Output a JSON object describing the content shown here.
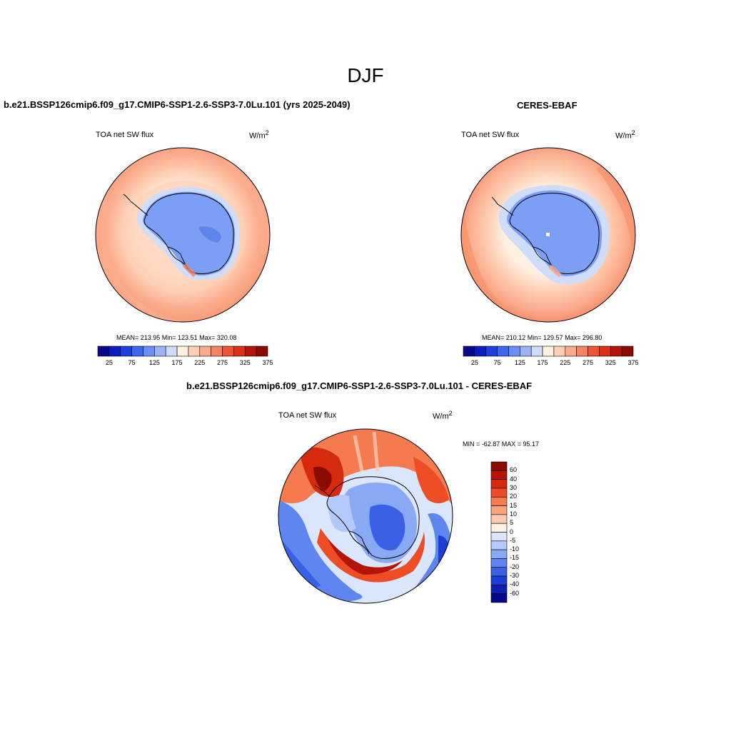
{
  "figure": {
    "title": "DJF"
  },
  "panels": [
    {
      "title": "b.e21.BSSP126cmip6.f09_g17.CMIP6-SSP1-2.6-SSP3-7.0Lu.101 (yrs 2025-2049)",
      "left_label": "TOA net SW flux",
      "units": "W/m",
      "units_sup": "2",
      "stats": "MEAN= 213.95  Min= 123.51  Max= 320.08"
    },
    {
      "title": "CERES-EBAF",
      "left_label": "TOA net SW flux",
      "units": "W/m",
      "units_sup": "2",
      "stats": "MEAN= 210.12  Min= 129.57  Max= 296.80"
    },
    {
      "title": "b.e21.BSSP126cmip6.f09_g17.CMIP6-SSP1-2.6-SSP3-7.0Lu.101 - CERES-EBAF",
      "left_label": "TOA net SW flux",
      "units": "W/m",
      "units_sup": "2",
      "stats": "MIN = -62.87 MAX =  95.17"
    }
  ],
  "colorbars": {
    "absolute": {
      "colors": [
        "#08088a",
        "#0c1cbf",
        "#1d3fe0",
        "#3f66f0",
        "#6b8df5",
        "#9db4f8",
        "#cfddfb",
        "#fff0e4",
        "#fdd0b5",
        "#fbab8c",
        "#f6815f",
        "#ee5430",
        "#de2f12",
        "#b5160a",
        "#8b0a04"
      ],
      "labels": [
        "25",
        "75",
        "125",
        "175",
        "225",
        "275",
        "325",
        "375"
      ]
    },
    "difference": {
      "colors": [
        "#8a0a04",
        "#b51508",
        "#d62a0e",
        "#ec4d24",
        "#f47a50",
        "#f9a27d",
        "#fccaae",
        "#fff0e4",
        "#dae6fc",
        "#b3c9f9",
        "#8aa9f4",
        "#5f85ee",
        "#3a60e5",
        "#1c3ed6",
        "#0c21b0",
        "#07078a"
      ],
      "labels": [
        "60",
        "40",
        "30",
        "20",
        "15",
        "10",
        "5",
        "0",
        "-5",
        "-10",
        "-15",
        "-20",
        "-30",
        "-40",
        "-60"
      ]
    }
  },
  "chart_data": [
    {
      "type": "heatmap",
      "title": "b.e21.BSSP126cmip6.f09_g17.CMIP6-SSP1-2.6-SSP3-7.0Lu.101 (yrs 2025-2049)",
      "variable": "TOA net SW flux",
      "units": "W/m2",
      "projection": "south polar stereographic",
      "mean": 213.95,
      "min": 123.51,
      "max": 320.08,
      "contour_levels": [
        25,
        50,
        75,
        100,
        125,
        150,
        175,
        200,
        225,
        250,
        275,
        300,
        325,
        350,
        375
      ]
    },
    {
      "type": "heatmap",
      "title": "CERES-EBAF",
      "variable": "TOA net SW flux",
      "units": "W/m2",
      "projection": "south polar stereographic",
      "mean": 210.12,
      "min": 129.57,
      "max": 296.8,
      "contour_levels": [
        25,
        50,
        75,
        100,
        125,
        150,
        175,
        200,
        225,
        250,
        275,
        300,
        325,
        350,
        375
      ]
    },
    {
      "type": "heatmap",
      "title": "b.e21.BSSP126cmip6.f09_g17.CMIP6-SSP1-2.6-SSP3-7.0Lu.101 - CERES-EBAF",
      "variable": "TOA net SW flux",
      "units": "W/m2",
      "projection": "south polar stereographic",
      "min": -62.87,
      "max": 95.17,
      "contour_levels": [
        -60,
        -40,
        -30,
        -20,
        -15,
        -10,
        -5,
        0,
        5,
        10,
        15,
        20,
        30,
        40,
        60
      ]
    }
  ]
}
